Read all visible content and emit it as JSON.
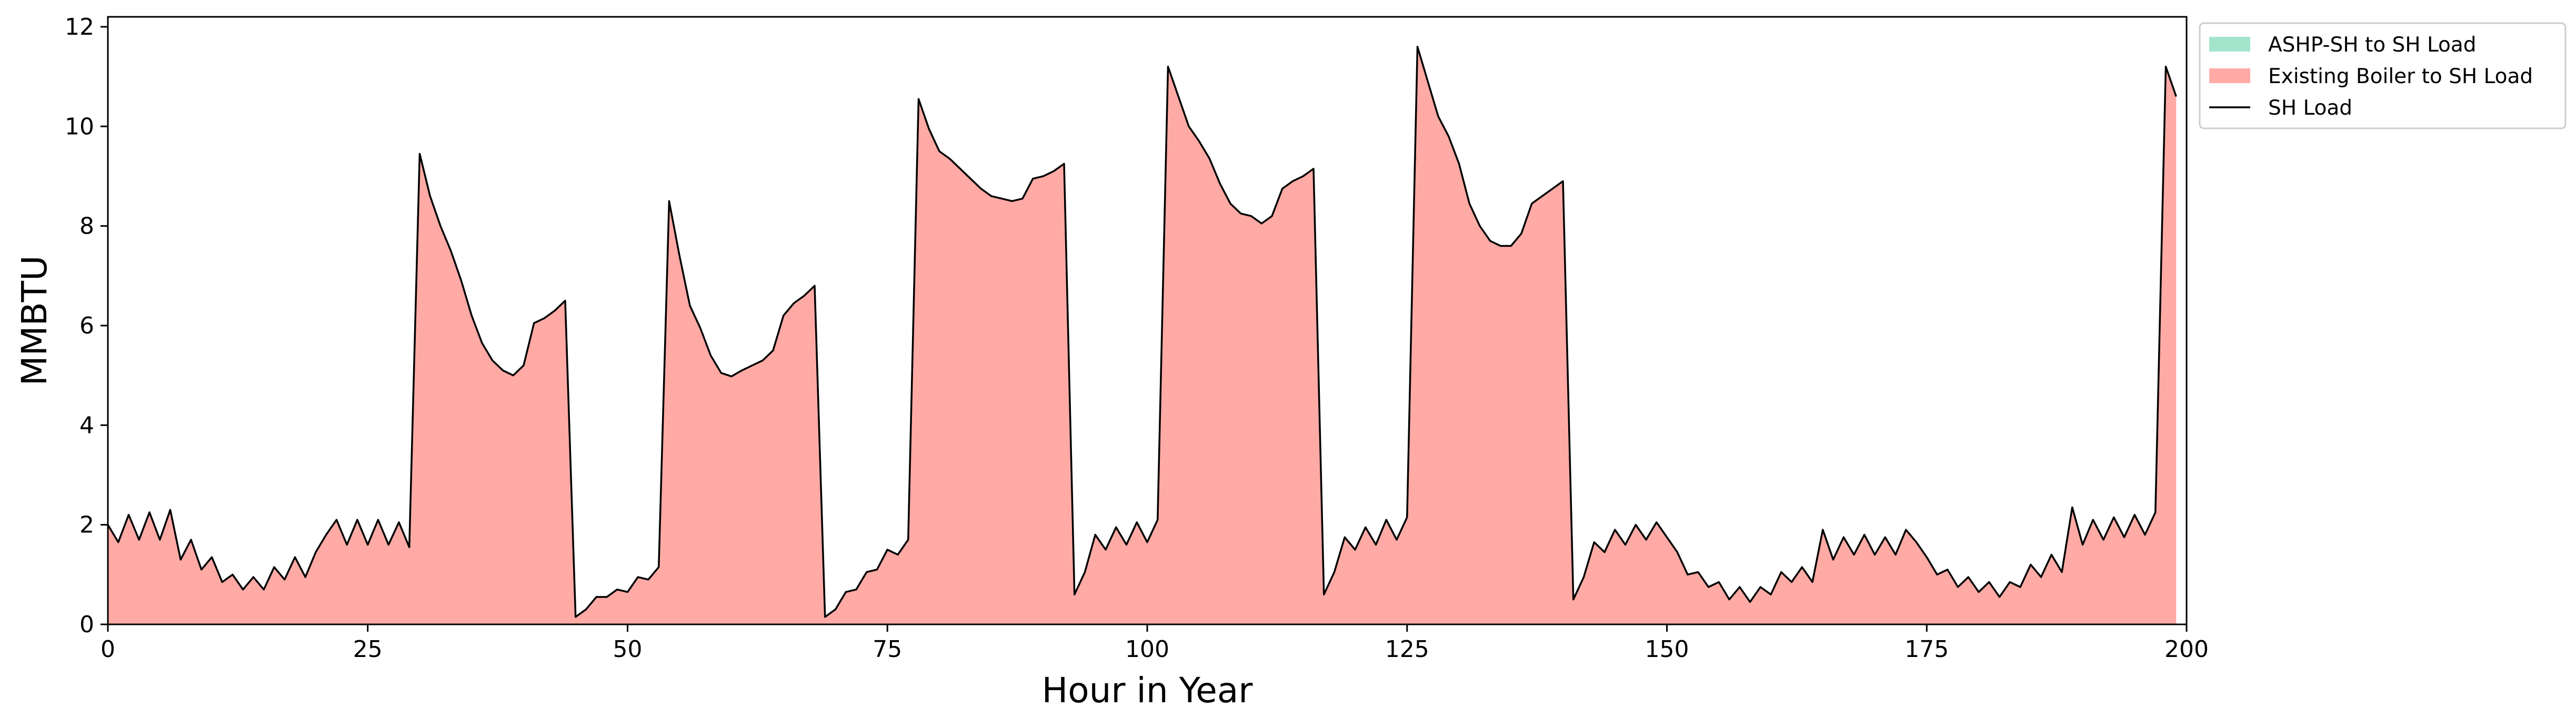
{
  "chart_data": {
    "type": "area",
    "xlabel": "Hour in Year",
    "ylabel": "MMBTU",
    "xlim": [
      0,
      200
    ],
    "ylim": [
      0,
      12.2
    ],
    "xticks": [
      0,
      25,
      50,
      75,
      100,
      125,
      150,
      175,
      200
    ],
    "yticks": [
      0,
      2,
      4,
      6,
      8,
      10,
      12
    ],
    "grid": false,
    "legend_position": "upper right, outside plot",
    "x": [
      0,
      1,
      2,
      3,
      4,
      5,
      6,
      7,
      8,
      9,
      10,
      11,
      12,
      13,
      14,
      15,
      16,
      17,
      18,
      19,
      20,
      21,
      22,
      23,
      24,
      25,
      26,
      27,
      28,
      29,
      30,
      31,
      32,
      33,
      34,
      35,
      36,
      37,
      38,
      39,
      40,
      41,
      42,
      43,
      44,
      45,
      46,
      47,
      48,
      49,
      50,
      51,
      52,
      53,
      54,
      55,
      56,
      57,
      58,
      59,
      60,
      61,
      62,
      63,
      64,
      65,
      66,
      67,
      68,
      69,
      70,
      71,
      72,
      73,
      74,
      75,
      76,
      77,
      78,
      79,
      80,
      81,
      82,
      83,
      84,
      85,
      86,
      87,
      88,
      89,
      90,
      91,
      92,
      93,
      94,
      95,
      96,
      97,
      98,
      99,
      100,
      101,
      102,
      103,
      104,
      105,
      106,
      107,
      108,
      109,
      110,
      111,
      112,
      113,
      114,
      115,
      116,
      117,
      118,
      119,
      120,
      121,
      122,
      123,
      124,
      125,
      126,
      127,
      128,
      129,
      130,
      131,
      132,
      133,
      134,
      135,
      136,
      137,
      138,
      139,
      140,
      141,
      142,
      143,
      144,
      145,
      146,
      147,
      148,
      149,
      150,
      151,
      152,
      153,
      154,
      155,
      156,
      157,
      158,
      159,
      160,
      161,
      162,
      163,
      164,
      165,
      166,
      167,
      168,
      169,
      170,
      171,
      172,
      173,
      174,
      175,
      176,
      177,
      178,
      179,
      180,
      181,
      182,
      183,
      184,
      185,
      186,
      187,
      188,
      189,
      190,
      191,
      192,
      193,
      194,
      195,
      196,
      197,
      198,
      199
    ],
    "series": [
      {
        "name": "ASHP-SH to SH Load",
        "kind": "area",
        "color": "#a3e4cc",
        "values": [
          0,
          0,
          0,
          0,
          0,
          0,
          0,
          0,
          0,
          0,
          0,
          0,
          0,
          0,
          0,
          0,
          0,
          0,
          0,
          0,
          0,
          0,
          0,
          0,
          0,
          0,
          0,
          0,
          0,
          0,
          0,
          0,
          0,
          0,
          0,
          0,
          0,
          0,
          0,
          0,
          0,
          0,
          0,
          0,
          0,
          0,
          0,
          0,
          0,
          0,
          0,
          0,
          0,
          0,
          0,
          0,
          0,
          0,
          0,
          0,
          0,
          0,
          0,
          0,
          0,
          0,
          0,
          0,
          0,
          0,
          0,
          0,
          0,
          0,
          0,
          0,
          0,
          0,
          0,
          0,
          0,
          0,
          0,
          0,
          0,
          0,
          0,
          0,
          0,
          0,
          0,
          0,
          0,
          0,
          0,
          0,
          0,
          0,
          0,
          0,
          0,
          0,
          0,
          0,
          0,
          0,
          0,
          0,
          0,
          0,
          0,
          0,
          0,
          0,
          0,
          0,
          0,
          0,
          0,
          0,
          0,
          0,
          0,
          0,
          0,
          0,
          0,
          0,
          0,
          0,
          0,
          0,
          0,
          0,
          0,
          0,
          0,
          0,
          0,
          0,
          0,
          0,
          0,
          0,
          0,
          0,
          0,
          0,
          0,
          0,
          0,
          0,
          0,
          0,
          0,
          0,
          0,
          0,
          0,
          0,
          0,
          0,
          0,
          0,
          0,
          0,
          0,
          0,
          0,
          0,
          0,
          0,
          0,
          0,
          0,
          0,
          0,
          0,
          0,
          0,
          0,
          0,
          0,
          0,
          0,
          0,
          0,
          0,
          0,
          0,
          0,
          0,
          0,
          0,
          0,
          0,
          0,
          0,
          0,
          0
        ]
      },
      {
        "name": "Existing Boiler to SH Load",
        "kind": "area",
        "color": "#ffaaa5",
        "values": [
          2.0,
          1.65,
          2.2,
          1.7,
          2.25,
          1.7,
          2.3,
          1.3,
          1.7,
          1.1,
          1.35,
          0.85,
          1.0,
          0.7,
          0.95,
          0.7,
          1.15,
          0.9,
          1.35,
          0.95,
          1.45,
          1.8,
          2.1,
          1.6,
          2.1,
          1.6,
          2.1,
          1.6,
          2.05,
          1.55,
          9.45,
          8.6,
          8.0,
          7.5,
          6.9,
          6.2,
          5.65,
          5.3,
          5.1,
          5.0,
          5.2,
          6.05,
          6.15,
          6.3,
          6.5,
          0.15,
          0.3,
          0.55,
          0.55,
          0.7,
          0.65,
          0.95,
          0.9,
          1.15,
          8.5,
          7.4,
          6.4,
          5.95,
          5.4,
          5.05,
          4.98,
          5.1,
          5.2,
          5.3,
          5.5,
          6.2,
          6.45,
          6.6,
          6.8,
          0.15,
          0.3,
          0.65,
          0.7,
          1.05,
          1.1,
          1.5,
          1.4,
          1.7,
          10.55,
          9.95,
          9.5,
          9.35,
          9.15,
          8.95,
          8.75,
          8.6,
          8.55,
          8.5,
          8.55,
          8.95,
          9.0,
          9.1,
          9.25,
          0.6,
          1.05,
          1.8,
          1.5,
          1.95,
          1.6,
          2.05,
          1.65,
          2.1,
          11.2,
          10.6,
          10.0,
          9.7,
          9.35,
          8.85,
          8.45,
          8.25,
          8.2,
          8.05,
          8.2,
          8.75,
          8.9,
          9.0,
          9.15,
          0.6,
          1.05,
          1.75,
          1.5,
          1.95,
          1.6,
          2.1,
          1.7,
          2.15,
          11.6,
          10.9,
          10.2,
          9.8,
          9.25,
          8.45,
          8.0,
          7.7,
          7.6,
          7.6,
          7.85,
          8.45,
          8.6,
          8.75,
          8.9,
          0.5,
          0.95,
          1.65,
          1.45,
          1.9,
          1.6,
          2.0,
          1.7,
          2.05,
          1.75,
          1.45,
          1.0,
          1.05,
          0.75,
          0.85,
          0.5,
          0.75,
          0.45,
          0.75,
          0.6,
          1.05,
          0.85,
          1.15,
          0.85,
          1.9,
          1.3,
          1.75,
          1.4,
          1.8,
          1.4,
          1.75,
          1.4,
          1.9,
          1.65,
          1.35,
          1.0,
          1.1,
          0.75,
          0.95,
          0.65,
          0.85,
          0.55,
          0.85,
          0.75,
          1.2,
          0.95,
          1.4,
          1.05,
          2.35,
          1.6,
          2.1,
          1.7,
          2.15,
          1.75,
          2.2,
          1.8,
          2.25,
          11.2,
          10.6
        ]
      },
      {
        "name": "SH Load",
        "kind": "line",
        "color": "#000000",
        "values": [
          2.0,
          1.65,
          2.2,
          1.7,
          2.25,
          1.7,
          2.3,
          1.3,
          1.7,
          1.1,
          1.35,
          0.85,
          1.0,
          0.7,
          0.95,
          0.7,
          1.15,
          0.9,
          1.35,
          0.95,
          1.45,
          1.8,
          2.1,
          1.6,
          2.1,
          1.6,
          2.1,
          1.6,
          2.05,
          1.55,
          9.45,
          8.6,
          8.0,
          7.5,
          6.9,
          6.2,
          5.65,
          5.3,
          5.1,
          5.0,
          5.2,
          6.05,
          6.15,
          6.3,
          6.5,
          0.15,
          0.3,
          0.55,
          0.55,
          0.7,
          0.65,
          0.95,
          0.9,
          1.15,
          8.5,
          7.4,
          6.4,
          5.95,
          5.4,
          5.05,
          4.98,
          5.1,
          5.2,
          5.3,
          5.5,
          6.2,
          6.45,
          6.6,
          6.8,
          0.15,
          0.3,
          0.65,
          0.7,
          1.05,
          1.1,
          1.5,
          1.4,
          1.7,
          10.55,
          9.95,
          9.5,
          9.35,
          9.15,
          8.95,
          8.75,
          8.6,
          8.55,
          8.5,
          8.55,
          8.95,
          9.0,
          9.1,
          9.25,
          0.6,
          1.05,
          1.8,
          1.5,
          1.95,
          1.6,
          2.05,
          1.65,
          2.1,
          11.2,
          10.6,
          10.0,
          9.7,
          9.35,
          8.85,
          8.45,
          8.25,
          8.2,
          8.05,
          8.2,
          8.75,
          8.9,
          9.0,
          9.15,
          0.6,
          1.05,
          1.75,
          1.5,
          1.95,
          1.6,
          2.1,
          1.7,
          2.15,
          11.6,
          10.9,
          10.2,
          9.8,
          9.25,
          8.45,
          8.0,
          7.7,
          7.6,
          7.6,
          7.85,
          8.45,
          8.6,
          8.75,
          8.9,
          0.5,
          0.95,
          1.65,
          1.45,
          1.9,
          1.6,
          2.0,
          1.7,
          2.05,
          1.75,
          1.45,
          1.0,
          1.05,
          0.75,
          0.85,
          0.5,
          0.75,
          0.45,
          0.75,
          0.6,
          1.05,
          0.85,
          1.15,
          0.85,
          1.9,
          1.3,
          1.75,
          1.4,
          1.8,
          1.4,
          1.75,
          1.4,
          1.9,
          1.65,
          1.35,
          1.0,
          1.1,
          0.75,
          0.95,
          0.65,
          0.85,
          0.55,
          0.85,
          0.75,
          1.2,
          0.95,
          1.4,
          1.05,
          2.35,
          1.6,
          2.1,
          1.7,
          2.15,
          1.75,
          2.2,
          1.8,
          2.25,
          11.2,
          10.6
        ]
      }
    ]
  }
}
